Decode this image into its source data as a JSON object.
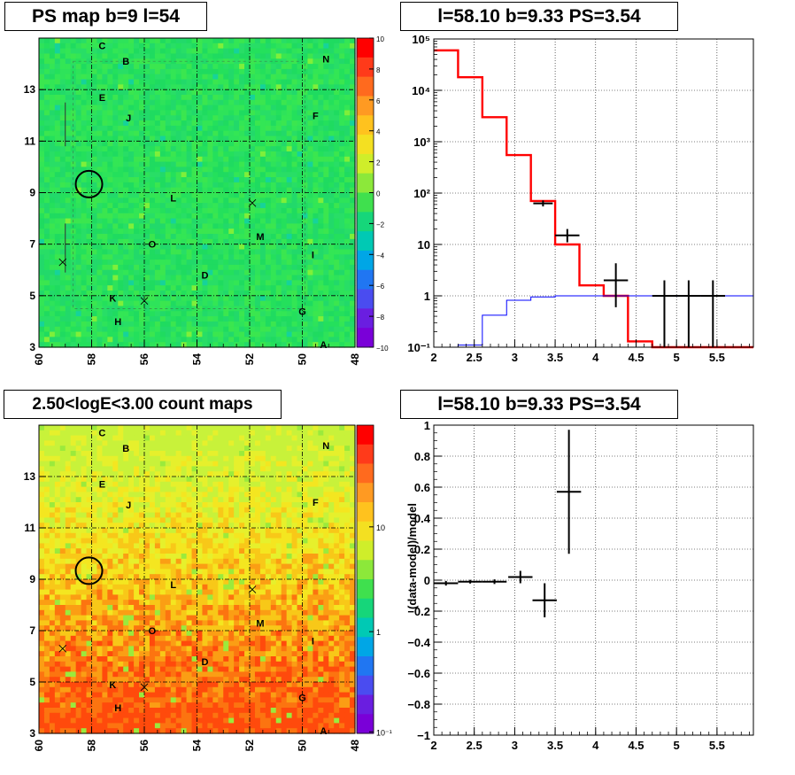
{
  "panels": {
    "ps_map_title": "PS map b=9 l=54",
    "count_map_title": "2.50<logE<3.00 count maps",
    "spectrum_title": "l=58.10 b=9.33 PS=3.54",
    "residual_title": "l=58.10 b=9.33 PS=3.54"
  },
  "chart_data": [
    {
      "type": "heatmap",
      "name": "ps_map",
      "title": "PS map b=9 l=54",
      "x_ticks": [
        "60",
        "58",
        "56",
        "54",
        "52",
        "50",
        "48"
      ],
      "y_ticks": [
        "3",
        "5",
        "7",
        "9",
        "11",
        "13"
      ],
      "xlim": [
        60,
        48
      ],
      "ylim": [
        3,
        15
      ],
      "colorbar_ticks": [
        "10",
        "8",
        "6",
        "4",
        "2",
        "0",
        "−2",
        "−4",
        "−6",
        "−8",
        "−10"
      ],
      "colorbar_range": [
        -10,
        10
      ],
      "dominant_color": "#22e05a",
      "grid": true,
      "markers": [
        {
          "label": "C",
          "l": 57.6,
          "b": 14.7
        },
        {
          "label": "B",
          "l": 56.7,
          "b": 14.1
        },
        {
          "label": "N",
          "l": 49.1,
          "b": 14.2
        },
        {
          "label": "E",
          "l": 57.6,
          "b": 12.7
        },
        {
          "label": "F",
          "l": 49.5,
          "b": 12.0
        },
        {
          "label": "J",
          "l": 56.6,
          "b": 11.9
        },
        {
          "label": "L",
          "l": 54.9,
          "b": 8.8
        },
        {
          "label": "M",
          "l": 51.6,
          "b": 7.3
        },
        {
          "label": "O",
          "l": 55.7,
          "b": 7.0
        },
        {
          "label": "I",
          "l": 49.6,
          "b": 6.6
        },
        {
          "label": "D",
          "l": 53.7,
          "b": 5.8
        },
        {
          "label": "K",
          "l": 57.2,
          "b": 4.9
        },
        {
          "label": "G",
          "l": 50.0,
          "b": 4.4
        },
        {
          "label": "H",
          "l": 57.0,
          "b": 4.0
        },
        {
          "label": "A",
          "l": 49.2,
          "b": 3.1
        }
      ],
      "crosses": [
        {
          "l": 51.9,
          "b": 8.6
        },
        {
          "l": 59.1,
          "b": 6.3
        },
        {
          "l": 56.0,
          "b": 4.8
        }
      ],
      "circle": {
        "l": 58.1,
        "b": 9.33
      }
    },
    {
      "type": "heatmap",
      "name": "count_map",
      "title": "2.50<logE<3.00 count maps",
      "x_ticks": [
        "60",
        "58",
        "56",
        "54",
        "52",
        "50",
        "48"
      ],
      "y_ticks": [
        "3",
        "5",
        "7",
        "9",
        "11",
        "13"
      ],
      "xlim": [
        60,
        48
      ],
      "ylim": [
        3,
        15
      ],
      "colorbar_ticks": [
        "10",
        "1",
        "10⁻¹"
      ],
      "log_colorbar": true,
      "grid": true,
      "markers": [
        {
          "label": "C",
          "l": 57.6,
          "b": 14.7
        },
        {
          "label": "B",
          "l": 56.7,
          "b": 14.1
        },
        {
          "label": "N",
          "l": 49.1,
          "b": 14.2
        },
        {
          "label": "E",
          "l": 57.6,
          "b": 12.7
        },
        {
          "label": "F",
          "l": 49.5,
          "b": 12.0
        },
        {
          "label": "J",
          "l": 56.6,
          "b": 11.9
        },
        {
          "label": "L",
          "l": 54.9,
          "b": 8.8
        },
        {
          "label": "M",
          "l": 51.6,
          "b": 7.3
        },
        {
          "label": "O",
          "l": 55.7,
          "b": 7.0
        },
        {
          "label": "I",
          "l": 49.6,
          "b": 6.6
        },
        {
          "label": "D",
          "l": 53.7,
          "b": 5.8
        },
        {
          "label": "K",
          "l": 57.2,
          "b": 4.9
        },
        {
          "label": "G",
          "l": 50.0,
          "b": 4.4
        },
        {
          "label": "H",
          "l": 57.0,
          "b": 4.0
        },
        {
          "label": "A",
          "l": 49.2,
          "b": 3.1
        }
      ],
      "crosses": [
        {
          "l": 51.9,
          "b": 8.6
        },
        {
          "l": 59.1,
          "b": 6.3
        },
        {
          "l": 56.0,
          "b": 4.8
        }
      ],
      "circle": {
        "l": 58.1,
        "b": 9.33
      }
    },
    {
      "type": "line",
      "name": "spectrum",
      "title": "l=58.10 b=9.33 PS=3.54",
      "xlim": [
        2.0,
        5.95
      ],
      "ylim": [
        0.1,
        100000
      ],
      "log_y": true,
      "x_ticks": [
        "2",
        "2.5",
        "3",
        "3.5",
        "4",
        "4.5",
        "5",
        "5.5"
      ],
      "y_ticks": [
        "10⁻¹",
        "1",
        "10",
        "10²",
        "10³",
        "10⁴",
        "10⁵"
      ],
      "grid": true,
      "series": [
        {
          "color": "#ff0000",
          "style": "step",
          "edges": [
            2.0,
            2.3,
            2.6,
            2.9,
            3.2,
            3.5,
            3.8,
            4.1,
            4.4,
            4.7,
            5.0,
            5.3,
            5.6,
            5.95
          ],
          "values": [
            60000,
            18000,
            3000,
            550,
            70,
            10,
            1.6,
            1.0,
            0.13,
            0.1,
            0.1,
            0.1,
            0.1
          ]
        },
        {
          "color": "#0000ff",
          "style": "step",
          "edges": [
            2.0,
            2.3,
            2.6,
            2.9,
            3.2,
            3.5,
            3.8,
            4.1,
            4.4,
            4.7,
            5.0,
            5.3,
            5.6,
            5.95
          ],
          "values": [
            0.1,
            0.11,
            0.42,
            0.82,
            0.95,
            1.0,
            1.0,
            1.0,
            1.0,
            1.0,
            1.0,
            1.0,
            1.0
          ]
        },
        {
          "color": "#000000",
          "style": "errorbar",
          "points": [
            {
              "x": 3.35,
              "xerr": 0.12,
              "y": 63,
              "ylo": 55,
              "yhi": 72
            },
            {
              "x": 3.65,
              "xerr": 0.15,
              "y": 15,
              "ylo": 11,
              "yhi": 20
            },
            {
              "x": 4.25,
              "xerr": 0.15,
              "y": 2,
              "ylo": 0.6,
              "yhi": 4.3
            },
            {
              "x": 4.85,
              "xerr": 0.15,
              "y": 1,
              "ylo": 0.1,
              "yhi": 2
            },
            {
              "x": 5.15,
              "xerr": 0.15,
              "y": 1,
              "ylo": 0.1,
              "yhi": 2
            },
            {
              "x": 5.45,
              "xerr": 0.15,
              "y": 1,
              "ylo": 0.1,
              "yhi": 2
            }
          ]
        }
      ]
    },
    {
      "type": "scatter",
      "name": "residual",
      "title": "l=58.10 b=9.33 PS=3.54",
      "ylabel": "(data-model)/model",
      "xlim": [
        2.0,
        5.95
      ],
      "ylim": [
        -1,
        1
      ],
      "x_ticks": [
        "2",
        "2.5",
        "3",
        "3.5",
        "4",
        "4.5",
        "5",
        "5.5"
      ],
      "y_ticks": [
        "1",
        "0.8",
        "0.6",
        "0.4",
        "0.2",
        "0",
        "−0.2",
        "−0.4",
        "−0.6",
        "−0.8",
        "−1"
      ],
      "grid": true,
      "points": [
        {
          "x": 2.15,
          "xerr": 0.15,
          "y": -0.02,
          "yerr": 0.015
        },
        {
          "x": 2.45,
          "xerr": 0.15,
          "y": -0.01,
          "yerr": 0.012
        },
        {
          "x": 2.75,
          "xerr": 0.15,
          "y": -0.01,
          "yerr": 0.015
        },
        {
          "x": 3.07,
          "xerr": 0.15,
          "y": 0.02,
          "yerr": 0.04
        },
        {
          "x": 3.37,
          "xerr": 0.15,
          "y": -0.13,
          "yerr": 0.11
        },
        {
          "x": 3.67,
          "xerr": 0.15,
          "y": 0.57,
          "yerr": 0.4
        }
      ]
    }
  ]
}
